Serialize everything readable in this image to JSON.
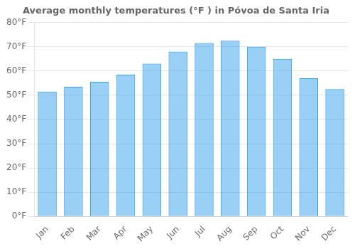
{
  "chart_data": {
    "type": "bar",
    "title": "Average monthly temperatures (°F ) in Póvoa de Santa Iria",
    "categories": [
      "Jan",
      "Feb",
      "Mar",
      "Apr",
      "May",
      "Jun",
      "Jul",
      "Aug",
      "Sep",
      "Oct",
      "Nov",
      "Dec"
    ],
    "values": [
      51.5,
      53.5,
      55.5,
      58.5,
      63,
      68,
      71.5,
      72.5,
      70,
      65,
      57,
      52.5
    ],
    "ylim": [
      0,
      80
    ],
    "yticks": [
      {
        "value": 0,
        "label": "0°F"
      },
      {
        "value": 10,
        "label": "10°F"
      },
      {
        "value": 20,
        "label": "20°F"
      },
      {
        "value": 30,
        "label": "30°F"
      },
      {
        "value": 40,
        "label": "40°F"
      },
      {
        "value": 50,
        "label": "50°F"
      },
      {
        "value": 60,
        "label": "60°F"
      },
      {
        "value": 70,
        "label": "70°F"
      },
      {
        "value": 80,
        "label": "80°F"
      }
    ],
    "grid": "y"
  }
}
